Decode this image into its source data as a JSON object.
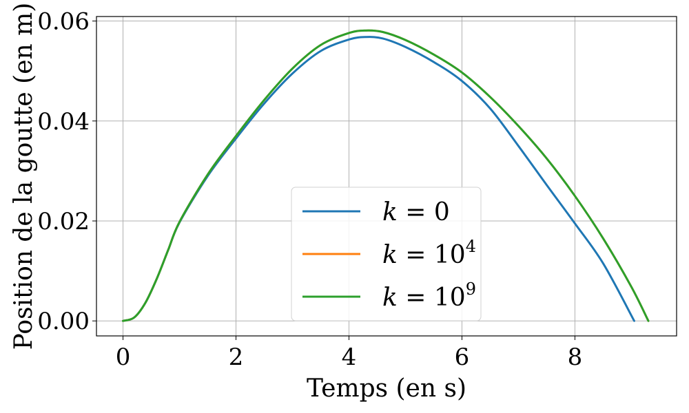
{
  "chart_data": {
    "type": "line",
    "title": "",
    "xlabel": "Temps (en s)",
    "ylabel": "Position de la goutte (en m)",
    "xlim": [
      -0.47,
      9.8
    ],
    "ylim": [
      -0.003,
      0.0609
    ],
    "xticks": [
      0,
      2,
      4,
      6,
      8
    ],
    "xtick_labels": [
      "0",
      "2",
      "4",
      "6",
      "8"
    ],
    "yticks": [
      0.0,
      0.02,
      0.04,
      0.06
    ],
    "ytick_labels": [
      "0.00",
      "0.02",
      "0.04",
      "0.06"
    ],
    "grid": true,
    "legend_position": "lower-center",
    "series": [
      {
        "name": "k = 0",
        "legend_k": "k",
        "legend_eq": " = 0",
        "legend_sup": "",
        "color": "#1f77b4",
        "x": [
          0,
          0.2,
          0.4,
          0.6,
          0.8,
          1.0,
          1.5,
          2.0,
          2.5,
          3.0,
          3.5,
          4.0,
          4.3,
          4.6,
          5.0,
          5.5,
          6.0,
          6.5,
          7.0,
          7.5,
          8.0,
          8.5,
          9.05
        ],
        "y": [
          0.0,
          0.0007,
          0.0037,
          0.0085,
          0.0142,
          0.0197,
          0.029,
          0.0365,
          0.0435,
          0.0495,
          0.054,
          0.0563,
          0.0568,
          0.0565,
          0.0548,
          0.0518,
          0.048,
          0.0425,
          0.035,
          0.0272,
          0.0195,
          0.0115,
          0.0
        ]
      },
      {
        "name": "k = 10^4",
        "legend_k": "k",
        "legend_eq": " = 10",
        "legend_sup": "4",
        "color": "#ff7f0e",
        "x": [
          0,
          0.2,
          0.4,
          0.6,
          0.8,
          1.0,
          1.5,
          2.0,
          2.5,
          3.0,
          3.5,
          4.0,
          4.3,
          4.6,
          5.0,
          5.5,
          6.0,
          6.5,
          7.0,
          7.5,
          8.0,
          8.5,
          9.0,
          9.3
        ],
        "y": [
          0.0,
          0.0007,
          0.0037,
          0.0085,
          0.0142,
          0.0198,
          0.0293,
          0.037,
          0.0442,
          0.0505,
          0.0552,
          0.0576,
          0.0581,
          0.0578,
          0.0562,
          0.0533,
          0.0497,
          0.0448,
          0.039,
          0.0325,
          0.025,
          0.0165,
          0.0068,
          0.0
        ]
      },
      {
        "name": "k = 10^9",
        "legend_k": "k",
        "legend_eq": " = 10",
        "legend_sup": "9",
        "color": "#2ca02c",
        "x": [
          0,
          0.2,
          0.4,
          0.6,
          0.8,
          1.0,
          1.5,
          2.0,
          2.5,
          3.0,
          3.5,
          4.0,
          4.3,
          4.6,
          5.0,
          5.5,
          6.0,
          6.5,
          7.0,
          7.5,
          8.0,
          8.5,
          9.0,
          9.3
        ],
        "y": [
          0.0,
          0.0007,
          0.0037,
          0.0085,
          0.0142,
          0.0198,
          0.0293,
          0.037,
          0.0442,
          0.0505,
          0.0552,
          0.0576,
          0.0581,
          0.0578,
          0.0562,
          0.0533,
          0.0497,
          0.0448,
          0.039,
          0.0325,
          0.025,
          0.0165,
          0.0068,
          0.0
        ]
      }
    ]
  }
}
